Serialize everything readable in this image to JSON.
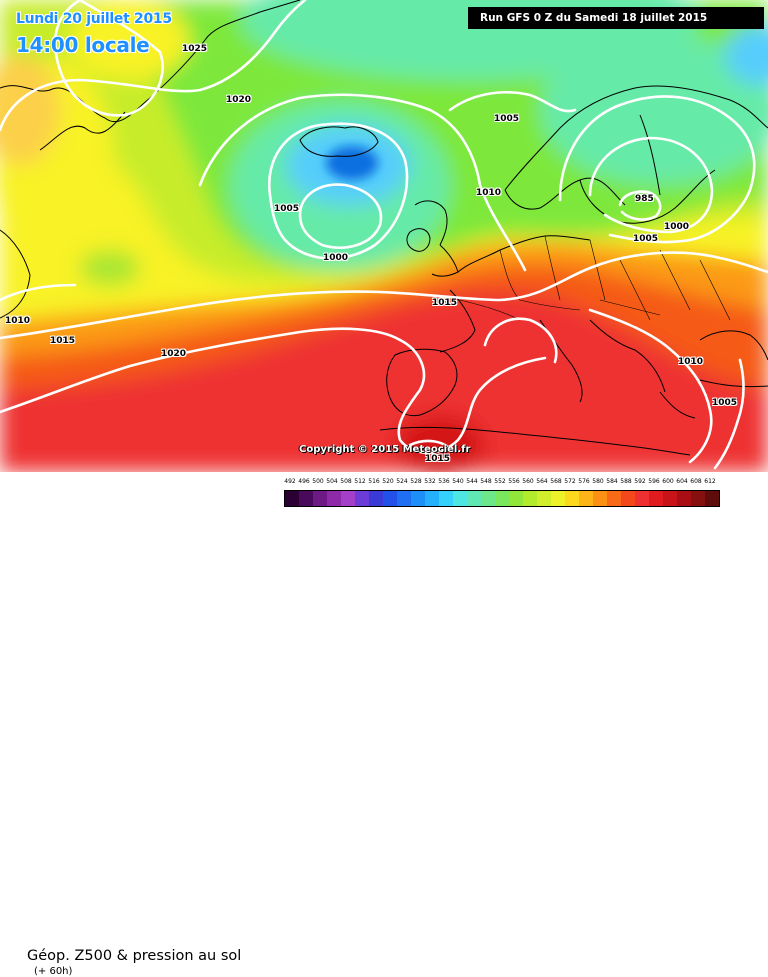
{
  "header": {
    "date_text": "Lundi 20 juillet 2015",
    "local_time": "14:00 locale",
    "run_info": "Run GFS 0 Z du Samedi 18 juillet 2015"
  },
  "map": {
    "copyright": "Copyright © 2015 Meteociel.fr",
    "isobar_labels": [
      "1025",
      "1020",
      "1005",
      "1005",
      "1010",
      "1000",
      "985",
      "1005",
      "1000",
      "1015",
      "1010",
      "1015",
      "1020",
      "1010",
      "1005",
      "1015"
    ],
    "colors": {
      "deep_blue": "#0a6fe0",
      "light_blue": "#56cdfc",
      "cyan_green": "#66eaa8",
      "green": "#7de83a",
      "yellow_green": "#c7ec2a",
      "yellow": "#f8f228",
      "orange": "#fc9a14",
      "red_orange": "#f55a18",
      "red": "#ee3030",
      "deep_red": "#d41515",
      "isobar": "#ffffff",
      "coast": "#000000"
    }
  },
  "footer": {
    "field_title": "Géop. Z500 & pression au sol",
    "lead_time": "(+ 60h)",
    "scale_labels": [
      "492",
      "496",
      "500",
      "504",
      "508",
      "512",
      "516",
      "520",
      "524",
      "528",
      "532",
      "536",
      "540",
      "544",
      "548",
      "552",
      "556",
      "560",
      "564",
      "568",
      "572",
      "576",
      "580",
      "584",
      "588",
      "592",
      "596",
      "600",
      "604",
      "608",
      "612"
    ],
    "scale_colors": [
      "#2b0033",
      "#4a0a5c",
      "#6e1a85",
      "#8e2aa8",
      "#a43fc9",
      "#6b3cd8",
      "#3a3ad6",
      "#2151e8",
      "#1f6ff2",
      "#1f8ff8",
      "#25b0fb",
      "#35d0fb",
      "#4ee6e0",
      "#5fe8b4",
      "#6ce88a",
      "#7ae85c",
      "#92e63a",
      "#b2ea2c",
      "#d0ee2a",
      "#eef228",
      "#fcd81e",
      "#fcb416",
      "#fc9014",
      "#f86a16",
      "#f4481c",
      "#ee3030",
      "#e01c20",
      "#c81418",
      "#a80e14",
      "#861010",
      "#5e0c0c"
    ]
  }
}
